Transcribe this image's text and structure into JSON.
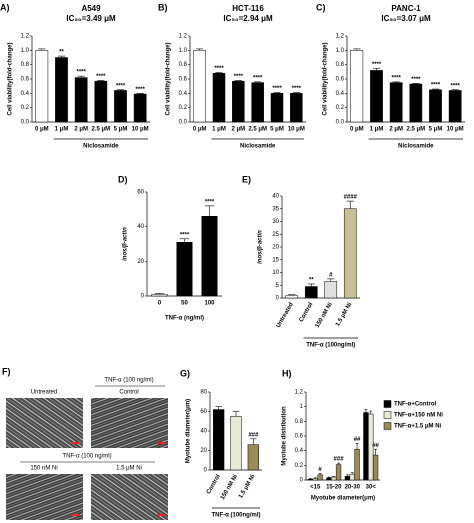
{
  "chart_data": [
    {
      "type": "bar",
      "panel": "A)",
      "title": "A549",
      "subtitle": "IC₅₀=3.49 μM",
      "ylabel": "Cell viability(fold-change)",
      "group_label": "Niclosamide",
      "categories": [
        "0 μM",
        "1 μM",
        "2 μM",
        "2.5 μM",
        "5 μM",
        "10 μM"
      ],
      "values": [
        1.0,
        0.9,
        0.62,
        0.57,
        0.44,
        0.39
      ],
      "errors": [
        0.02,
        0.02,
        0.02,
        0.01,
        0.01,
        0.01
      ],
      "annotations": [
        null,
        "**",
        "****",
        "****",
        "****",
        "****"
      ],
      "colors": [
        "#ffffff",
        "#000000",
        "#000000",
        "#000000",
        "#000000",
        "#000000"
      ],
      "ylim": [
        0,
        1.2
      ],
      "yticks": [
        {
          "value": 0,
          "label": "0.0"
        },
        0.2,
        0.4,
        0.6,
        0.8,
        {
          "value": 1,
          "label": "1.0"
        },
        1.2
      ]
    },
    {
      "type": "bar",
      "panel": "B)",
      "title": "HCT-116",
      "subtitle": "IC₅₀=2.94 μM",
      "ylabel": "Cell viability(fold-change)",
      "group_label": "Niclosamide",
      "categories": [
        "0 μM",
        "1 μM",
        "2 μM",
        "2.5 μM",
        "5 μM",
        "10 μM"
      ],
      "values": [
        1.0,
        0.68,
        0.57,
        0.55,
        0.4,
        0.4
      ],
      "errors": [
        0.02,
        0.01,
        0.01,
        0.01,
        0.01,
        0.01
      ],
      "annotations": [
        null,
        "****",
        "****",
        "****",
        "****",
        "****"
      ],
      "colors": [
        "#ffffff",
        "#000000",
        "#000000",
        "#000000",
        "#000000",
        "#000000"
      ],
      "ylim": [
        0,
        1.2
      ],
      "yticks": [
        {
          "value": 0,
          "label": "0.0"
        },
        0.2,
        0.4,
        0.6,
        0.8,
        {
          "value": 1,
          "label": "1.0"
        },
        1.2
      ]
    },
    {
      "type": "bar",
      "panel": "C)",
      "title": "PANC-1",
      "subtitle": "IC₅₀=3.07 μM",
      "ylabel": "Cell viability(fold-change)",
      "group_label": "Niclosamide",
      "categories": [
        "0 μM",
        "1 μM",
        "2 μM",
        "2.5 μM",
        "5 μM",
        "10 μM"
      ],
      "values": [
        1.0,
        0.72,
        0.55,
        0.53,
        0.45,
        0.44
      ],
      "errors": [
        0.02,
        0.03,
        0.01,
        0.01,
        0.01,
        0.01
      ],
      "annotations": [
        null,
        "****",
        "****",
        "****",
        "****",
        "****"
      ],
      "colors": [
        "#ffffff",
        "#000000",
        "#000000",
        "#000000",
        "#000000",
        "#000000"
      ],
      "ylim": [
        0,
        1.2
      ],
      "yticks": [
        {
          "value": 0,
          "label": "0.0"
        },
        0.2,
        0.4,
        0.6,
        0.8,
        {
          "value": 1,
          "label": "1.0"
        },
        1.2
      ]
    },
    {
      "type": "bar",
      "panel": "D)",
      "ylabel": "inos/β-actin",
      "xlabel": "TNF-α (ng/ml)",
      "categories": [
        "0",
        "50",
        "100"
      ],
      "values": [
        1,
        31,
        46
      ],
      "errors": [
        0.5,
        2,
        6
      ],
      "annotations": [
        null,
        "****",
        "****"
      ],
      "colors": [
        "#ffffff",
        "#000000",
        "#000000"
      ],
      "ylim": [
        0,
        60
      ],
      "yticks": [
        0,
        20,
        40,
        60
      ]
    },
    {
      "type": "bar",
      "panel": "E)",
      "ylabel": "inos/β-actin",
      "group_label": "TNF-α (100ng/ml)",
      "categories": [
        "Untreated",
        "Control",
        "150 nM Ni",
        "1.5 μM Ni"
      ],
      "values": [
        1,
        4.5,
        6.5,
        35
      ],
      "errors": [
        0.3,
        1,
        1,
        3
      ],
      "annotations": [
        null,
        "**",
        "#",
        "####"
      ],
      "colors": [
        "#ffffff",
        "#000000",
        "#e0e0e0",
        "#c9bf96"
      ],
      "ylim": [
        0,
        40
      ],
      "yticks": [
        0,
        5,
        10,
        15,
        20,
        25,
        30,
        35,
        40
      ]
    },
    {
      "type": "bar",
      "panel": "G)",
      "ylabel": "Myotube diameter(μm)",
      "group_label": "TNF-α (100ng/ml)",
      "categories": [
        "Control",
        "150 nM Ni",
        "1.5 μM Ni"
      ],
      "values": [
        62,
        55,
        26
      ],
      "errors": [
        3,
        5,
        6
      ],
      "annotations": [
        null,
        null,
        "###"
      ],
      "colors": [
        "#000000",
        "#e9e9d6",
        "#9b8b58"
      ],
      "ylim": [
        0,
        80
      ],
      "yticks": [
        0,
        20,
        40,
        60,
        80
      ]
    },
    {
      "type": "bar",
      "panel": "H)",
      "ylabel": "Myotube distribution",
      "xlabel": "Myotube diameter(μm)",
      "legend": "right",
      "categories": [
        "<15",
        "15-20",
        "20-30",
        "30<"
      ],
      "series": [
        {
          "name": "TNF-α+Control",
          "color": "#000000",
          "values": [
            0.01,
            0.03,
            0.05,
            0.92
          ],
          "errors": [
            0.01,
            0.01,
            0.02,
            0.04
          ]
        },
        {
          "name": "TNF-α+150 nM Ni",
          "color": "#e9e9d6",
          "values": [
            0.02,
            0.04,
            0.08,
            0.9
          ],
          "errors": [
            0.01,
            0.01,
            0.02,
            0.04
          ]
        },
        {
          "name": "TNF-α+1.5 μM Ni",
          "color": "#9b8b58",
          "values": [
            0.07,
            0.21,
            0.42,
            0.34
          ],
          "errors": [
            0.02,
            0.02,
            0.08,
            0.08
          ],
          "annotations": [
            "#",
            "###",
            "##",
            "##"
          ]
        }
      ],
      "ylim": [
        0,
        1.2
      ],
      "yticks": [
        0,
        0.2,
        0.4,
        0.6,
        0.8,
        1,
        1.2
      ]
    }
  ],
  "panel_f": {
    "panel": "F)",
    "untreated": "Untreated",
    "tnf_top": "TNF-α (100 ng/ml)",
    "control": "Control",
    "tnf_mid": "TNF-α (100 ng/ml)",
    "ni_low": "150 nM Ni",
    "ni_high": "1.5 μM Ni"
  }
}
